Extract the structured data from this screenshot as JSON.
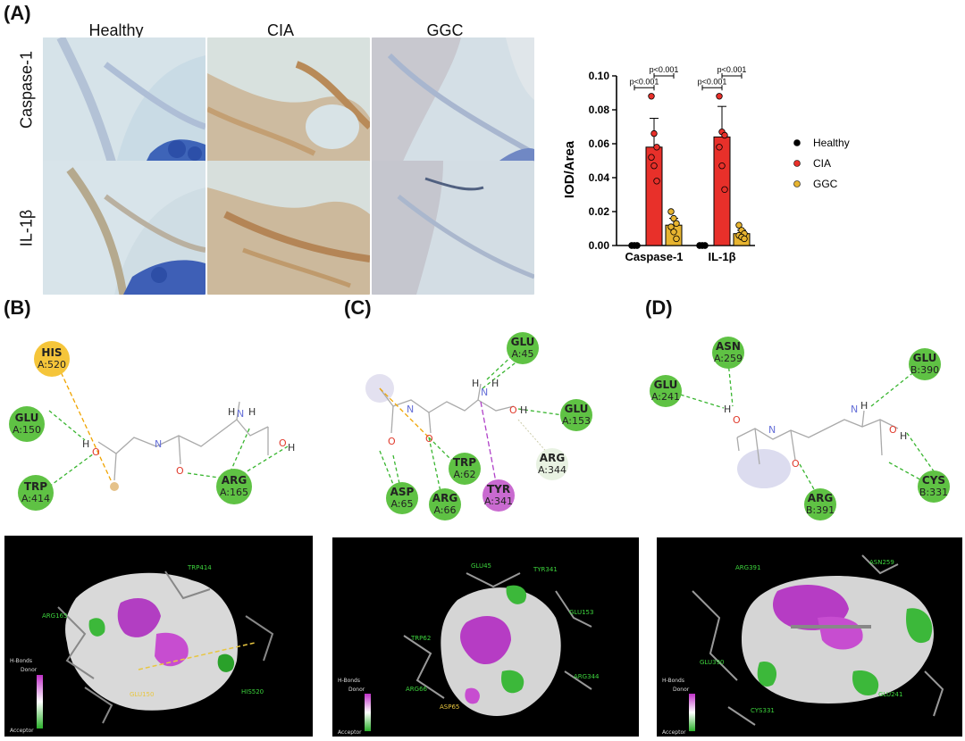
{
  "panels": {
    "a": "(A)",
    "b": "(B)",
    "c": "(C)",
    "d": "(D)"
  },
  "micrographs": {
    "columns": [
      "Healthy",
      "CIA",
      "GGC"
    ],
    "rows": [
      "Caspase-1",
      "IL-1β"
    ]
  },
  "chart_data": {
    "type": "bar",
    "ylabel": "IOD/Area",
    "xlabel": "",
    "ylim": [
      0,
      0.1
    ],
    "yticks": [
      "0.00",
      "0.02",
      "0.04",
      "0.06",
      "0.08",
      "0.10"
    ],
    "categories": [
      "Caspase-1",
      "IL-1β"
    ],
    "series": [
      {
        "name": "Healthy",
        "color": "#000000",
        "values": [
          0.0,
          0.0
        ],
        "err": [
          0.0,
          0.0
        ],
        "points": [
          [
            0,
            0,
            0,
            0,
            0,
            0
          ],
          [
            0,
            0,
            0,
            0,
            0,
            0
          ]
        ]
      },
      {
        "name": "CIA",
        "color": "#e8302a",
        "values": [
          0.058,
          0.064
        ],
        "err": [
          0.017,
          0.018
        ],
        "points": [
          [
            0.088,
            0.066,
            0.058,
            0.052,
            0.047,
            0.038
          ],
          [
            0.088,
            0.067,
            0.065,
            0.058,
            0.047,
            0.033
          ]
        ]
      },
      {
        "name": "GGC",
        "color": "#e7b430",
        "values": [
          0.012,
          0.007
        ],
        "err": [
          0.004,
          0.002
        ],
        "points": [
          [
            0.02,
            0.016,
            0.013,
            0.011,
            0.008,
            0.004
          ],
          [
            0.012,
            0.009,
            0.007,
            0.006,
            0.005,
            0.004
          ]
        ]
      }
    ],
    "annotations": [
      "p<0.001",
      "p<0.001",
      "p<0.001",
      "p<0.001"
    ],
    "legend_position": "right"
  },
  "interactions": {
    "b": {
      "residues": [
        {
          "name": "HIS",
          "id": "A:520",
          "color": "#f5c53a"
        },
        {
          "name": "GLU",
          "id": "A:150",
          "color": "#5fc244"
        },
        {
          "name": "TRP",
          "id": "A:414",
          "color": "#5fc244"
        },
        {
          "name": "ARG",
          "id": "A:165",
          "color": "#5fc244"
        }
      ],
      "atoms": [
        "H",
        "O",
        "N",
        "O",
        "H",
        "N",
        "H",
        "O",
        "H"
      ],
      "dock_labels": [
        "TRP414",
        "ARG165",
        "GLU150",
        "HIS520"
      ]
    },
    "c": {
      "residues": [
        {
          "name": "GLU",
          "id": "A:45",
          "color": "#5fc244"
        },
        {
          "name": "GLU",
          "id": "A:153",
          "color": "#5fc244"
        },
        {
          "name": "ARG",
          "id": "A:344",
          "color": "#e8f2e2"
        },
        {
          "name": "TYR",
          "id": "A:341",
          "color": "#c96ad0"
        },
        {
          "name": "TRP",
          "id": "A:62",
          "color": "#5fc244"
        },
        {
          "name": "ARG",
          "id": "A:66",
          "color": "#5fc244"
        },
        {
          "name": "ASP",
          "id": "A:65",
          "color": "#5fc244"
        }
      ],
      "atoms": [
        "H",
        "N",
        "H",
        "O",
        "H",
        "N",
        "O",
        "O"
      ],
      "dock_labels": [
        "GLU45",
        "TYR341",
        "GLU153",
        "TRP62",
        "ARG344",
        "ARG66",
        "ASP65"
      ]
    },
    "d": {
      "residues": [
        {
          "name": "ASN",
          "id": "A:259",
          "color": "#5fc244"
        },
        {
          "name": "GLU",
          "id": "A:241",
          "color": "#5fc244"
        },
        {
          "name": "GLU",
          "id": "B:390",
          "color": "#5fc244"
        },
        {
          "name": "ARG",
          "id": "B:391",
          "color": "#5fc244"
        },
        {
          "name": "CYS",
          "id": "B:331",
          "color": "#5fc244"
        }
      ],
      "atoms": [
        "H",
        "O",
        "N",
        "N",
        "H",
        "O",
        "H",
        "O"
      ],
      "dock_labels": [
        "ARG391",
        "ASN259",
        "GLU390",
        "GLU241",
        "CYS331"
      ]
    },
    "hbond_legend": {
      "title": "H-Bonds",
      "donor": "Donor",
      "acceptor": "Acceptor"
    }
  }
}
